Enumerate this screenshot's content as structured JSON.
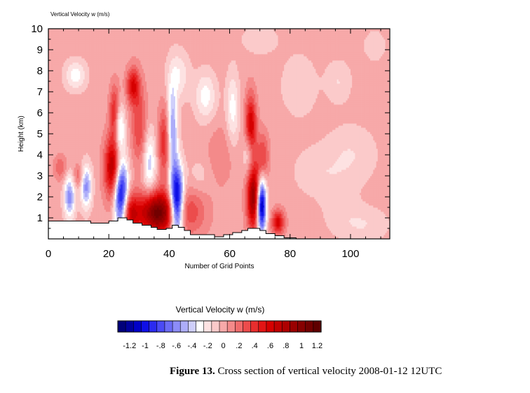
{
  "chart_data": {
    "type": "heatmap",
    "plot_title": "Vertical Velocity w   (m/s)",
    "xlabel": "Number of Grid Points",
    "ylabel": "Height (km)",
    "xlim": [
      0,
      113
    ],
    "ylim": [
      0,
      10
    ],
    "x_ticks": [
      0,
      20,
      40,
      60,
      80,
      100
    ],
    "y_ticks": [
      1,
      2,
      3,
      4,
      5,
      6,
      7,
      8,
      9,
      10
    ],
    "background_value": 0.05,
    "terrain": [
      [
        0,
        0.85
      ],
      [
        14,
        0.85
      ],
      [
        14,
        0.75
      ],
      [
        20,
        0.75
      ],
      [
        20,
        0.85
      ],
      [
        23,
        0.85
      ],
      [
        23,
        1.0
      ],
      [
        26,
        1.0
      ],
      [
        26,
        0.9
      ],
      [
        28,
        0.9
      ],
      [
        28,
        0.75
      ],
      [
        31,
        0.75
      ],
      [
        31,
        0.65
      ],
      [
        34,
        0.65
      ],
      [
        34,
        0.55
      ],
      [
        36,
        0.55
      ],
      [
        36,
        0.45
      ],
      [
        39,
        0.45
      ],
      [
        39,
        0.5
      ],
      [
        41,
        0.5
      ],
      [
        41,
        0.65
      ],
      [
        43,
        0.65
      ],
      [
        43,
        0.55
      ],
      [
        45,
        0.55
      ],
      [
        45,
        0.4
      ],
      [
        47,
        0.4
      ],
      [
        47,
        0.2
      ],
      [
        55,
        0.2
      ],
      [
        55,
        0.1
      ],
      [
        58,
        0.1
      ],
      [
        58,
        0.2
      ],
      [
        61,
        0.2
      ],
      [
        61,
        0.3
      ],
      [
        64,
        0.3
      ],
      [
        64,
        0.4
      ],
      [
        66,
        0.4
      ],
      [
        66,
        0.5
      ],
      [
        70,
        0.5
      ],
      [
        70,
        0.4
      ],
      [
        72,
        0.4
      ],
      [
        72,
        0.25
      ],
      [
        75,
        0.25
      ],
      [
        75,
        0.15
      ],
      [
        78,
        0.15
      ],
      [
        78,
        0.05
      ],
      [
        82,
        0.05
      ],
      [
        82,
        0
      ],
      [
        113,
        0
      ]
    ],
    "blobs": [
      {
        "x": 7,
        "z": 2.0,
        "sx": 1.3,
        "sz": 0.7,
        "amp": -0.6
      },
      {
        "x": 12.5,
        "z": 2.5,
        "sx": 1.3,
        "sz": 0.7,
        "amp": -0.6
      },
      {
        "x": 4,
        "z": 3.4,
        "sx": 1.5,
        "sz": 0.4,
        "amp": 0.25
      },
      {
        "x": 10,
        "z": 3.0,
        "sx": 1.2,
        "sz": 0.4,
        "amp": 0.25
      },
      {
        "x": 24,
        "z": 2.0,
        "sx": 1.6,
        "sz": 1.3,
        "amp": -1.3
      },
      {
        "x": 21.5,
        "z": 3.4,
        "sx": 2.0,
        "sz": 1.0,
        "amp": 0.85
      },
      {
        "x": 26.5,
        "z": 1.2,
        "sx": 2.6,
        "sz": 0.7,
        "amp": 0.7
      },
      {
        "x": 36,
        "z": 1.25,
        "sx": 4.0,
        "sz": 0.7,
        "amp": 1.1
      },
      {
        "x": 42.5,
        "z": 1.8,
        "sx": 1.5,
        "sz": 1.2,
        "amp": -1.3
      },
      {
        "x": 47,
        "z": 1.3,
        "sx": 4.0,
        "sz": 0.8,
        "amp": 0.3
      },
      {
        "x": 23.5,
        "z": 5.3,
        "sx": 1.2,
        "sz": 0.8,
        "amp": -0.5
      },
      {
        "x": 22,
        "z": 6.0,
        "sx": 1.2,
        "sz": 0.9,
        "amp": 0.5
      },
      {
        "x": 30,
        "z": 5.4,
        "sx": 1.8,
        "sz": 1.3,
        "amp": 0.35
      },
      {
        "x": 33.5,
        "z": 3.6,
        "sx": 1.5,
        "sz": 1.1,
        "amp": -0.4
      },
      {
        "x": 41,
        "z": 5.2,
        "sx": 1.2,
        "sz": 1.4,
        "amp": -0.6
      },
      {
        "x": 38.5,
        "z": 4.6,
        "sx": 1.5,
        "sz": 1.2,
        "amp": 0.45
      },
      {
        "x": 28,
        "z": 7.3,
        "sx": 1.5,
        "sz": 0.6,
        "amp": 0.55
      },
      {
        "x": 9,
        "z": 7.8,
        "sx": 2.5,
        "sz": 0.5,
        "amp": -0.3
      },
      {
        "x": 43,
        "z": 7.8,
        "sx": 2.5,
        "sz": 0.8,
        "amp": -0.25
      },
      {
        "x": 68,
        "z": 2.0,
        "sx": 1.6,
        "sz": 1.1,
        "amp": 0.95
      },
      {
        "x": 70.5,
        "z": 1.6,
        "sx": 1.1,
        "sz": 0.9,
        "amp": -1.35
      },
      {
        "x": 67,
        "z": 5.2,
        "sx": 1.3,
        "sz": 1.1,
        "amp": 0.75
      },
      {
        "x": 66.5,
        "z": 4.1,
        "sx": 1.3,
        "sz": 0.8,
        "amp": -0.45
      },
      {
        "x": 71,
        "z": 3.9,
        "sx": 1.4,
        "sz": 0.8,
        "amp": 0.35
      },
      {
        "x": 61,
        "z": 6.2,
        "sx": 1.5,
        "sz": 1.2,
        "amp": -0.3
      },
      {
        "x": 52,
        "z": 6.8,
        "sx": 2.5,
        "sz": 0.8,
        "amp": -0.3
      },
      {
        "x": 57,
        "z": 4.0,
        "sx": 3.0,
        "sz": 1.0,
        "amp": 0.15
      },
      {
        "x": 76,
        "z": 0.8,
        "sx": 1.5,
        "sz": 0.4,
        "amp": 0.6
      },
      {
        "x": 104,
        "z": 0.7,
        "sx": 6.0,
        "sz": 0.6,
        "amp": -0.15
      },
      {
        "x": 96,
        "z": 1.8,
        "sx": 4.0,
        "sz": 0.9,
        "amp": -0.1
      },
      {
        "x": 88,
        "z": 3.2,
        "sx": 5.0,
        "sz": 0.8,
        "amp": -0.12
      },
      {
        "x": 100,
        "z": 4.0,
        "sx": 6.0,
        "sz": 1.0,
        "amp": -0.15
      },
      {
        "x": 83,
        "z": 7.3,
        "sx": 4.0,
        "sz": 1.0,
        "amp": -0.15
      },
      {
        "x": 96,
        "z": 7.5,
        "sx": 3.0,
        "sz": 0.7,
        "amp": -0.15
      },
      {
        "x": 70,
        "z": 9.5,
        "sx": 5.0,
        "sz": 0.6,
        "amp": -0.1
      },
      {
        "x": 108,
        "z": 9.2,
        "sx": 3.0,
        "sz": 0.6,
        "amp": -0.1
      },
      {
        "x": 50,
        "z": 3.0,
        "sx": 3.0,
        "sz": 0.6,
        "amp": -0.1
      }
    ]
  },
  "colorbar": {
    "title": "Vertical Velocity w  (m/s)",
    "vmin": -1.3,
    "vmax": 1.3,
    "step": 0.1,
    "colors": [
      "#00007a",
      "#00009e",
      "#0000c8",
      "#0f0fe6",
      "#2a2af0",
      "#4a4af5",
      "#6b6bf7",
      "#8c8cf8",
      "#adadf9",
      "#cfcffb",
      "#ffffff",
      "#fde2e2",
      "#fbcaca",
      "#f7a9a9",
      "#f48a8a",
      "#f06b6b",
      "#ec4c4c",
      "#e82e2e",
      "#e31414",
      "#d60000",
      "#c10000",
      "#ae0000",
      "#9a0000",
      "#870000",
      "#730000",
      "#5f0000"
    ],
    "labels": [
      "-1.2",
      "-1",
      "-.8",
      "-.6",
      "-.4",
      "-.2",
      "0",
      ".2",
      ".4",
      ".6",
      ".8",
      "1",
      "1.2"
    ]
  },
  "caption": {
    "label": "Figure 13.",
    "text": "Cross section of vertical velocity 2008-01-12 12UTC"
  }
}
